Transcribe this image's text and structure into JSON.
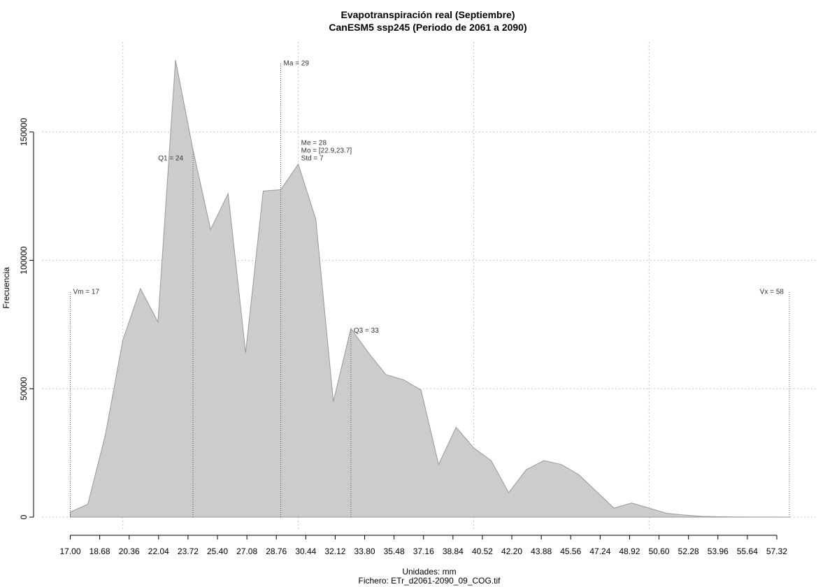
{
  "chart_data": {
    "type": "area",
    "title": "Evapotranspiración real (Septiembre)",
    "subtitle": "CanESM5 ssp245 (Periodo de 2061 a 2090)",
    "xlabel": "Unidades: mm",
    "ylabel": "Frecuencia",
    "footer": "Fichero: ETr_d2061-2090_09_COG.tif",
    "xlim": [
      17.0,
      58.0
    ],
    "ylim": [
      0,
      180000
    ],
    "grid": true,
    "fill_color": "#cccccc",
    "line_color": "#999999",
    "x_tick_labels": [
      "17.00",
      "18.68",
      "20.36",
      "22.04",
      "23.72",
      "25.40",
      "27.08",
      "28.76",
      "30.44",
      "32.12",
      "33.80",
      "35.48",
      "37.16",
      "38.84",
      "40.52",
      "42.20",
      "43.88",
      "45.56",
      "47.24",
      "48.92",
      "50.60",
      "52.28",
      "53.96",
      "55.64",
      "57.32"
    ],
    "y_ticks": [
      0,
      50000,
      100000,
      150000
    ],
    "y_tick_labels": [
      "0",
      "50000",
      "100000",
      "150000"
    ],
    "x": [
      17.0,
      18.0,
      19.0,
      20.0,
      21.0,
      22.0,
      23.0,
      24.0,
      25.0,
      26.0,
      27.0,
      28.0,
      29.0,
      30.0,
      31.0,
      32.0,
      33.0,
      34.0,
      35.0,
      36.0,
      37.0,
      38.0,
      39.0,
      40.0,
      41.0,
      42.0,
      43.0,
      44.0,
      45.0,
      46.0,
      47.0,
      48.0,
      49.0,
      50.0,
      51.0,
      52.0,
      53.0,
      54.0,
      55.0,
      56.0,
      57.0,
      58.0
    ],
    "y": [
      2000,
      5000,
      32000,
      69000,
      89000,
      76000,
      178000,
      143000,
      112000,
      126000,
      64000,
      127000,
      127500,
      137500,
      116000,
      45000,
      73500,
      64000,
      55500,
      53500,
      49500,
      20500,
      35000,
      27000,
      22000,
      9500,
      18500,
      22000,
      20500,
      16500,
      10000,
      3500,
      5500,
      3500,
      1500,
      800,
      300,
      150,
      80,
      40,
      20,
      10
    ],
    "annotations": [
      {
        "label": "Vm = 17",
        "x": 17.0,
        "y": 88000
      },
      {
        "label": "Q1 = 24",
        "x": 24.0,
        "y": 140000
      },
      {
        "label": "Ma = 29",
        "x": 29.0,
        "y": 177000
      },
      {
        "label": "Me = 28",
        "x": 30.0,
        "y": 146000
      },
      {
        "label": "Mo = [22.9,23.7]",
        "x": 30.0,
        "y": 143000
      },
      {
        "label": "Std = 7",
        "x": 30.0,
        "y": 140000
      },
      {
        "label": "Q3 = 33",
        "x": 33.0,
        "y": 73000
      },
      {
        "label": "Vx = 58",
        "x": 58.0,
        "y": 88000
      }
    ],
    "vertical_lines": [
      {
        "x": 17.0,
        "y": 88000
      },
      {
        "x": 24.0,
        "y": 143000
      },
      {
        "x": 29.0,
        "y": 177000
      },
      {
        "x": 33.0,
        "y": 73500
      },
      {
        "x": 58.0,
        "y": 88000
      }
    ]
  }
}
